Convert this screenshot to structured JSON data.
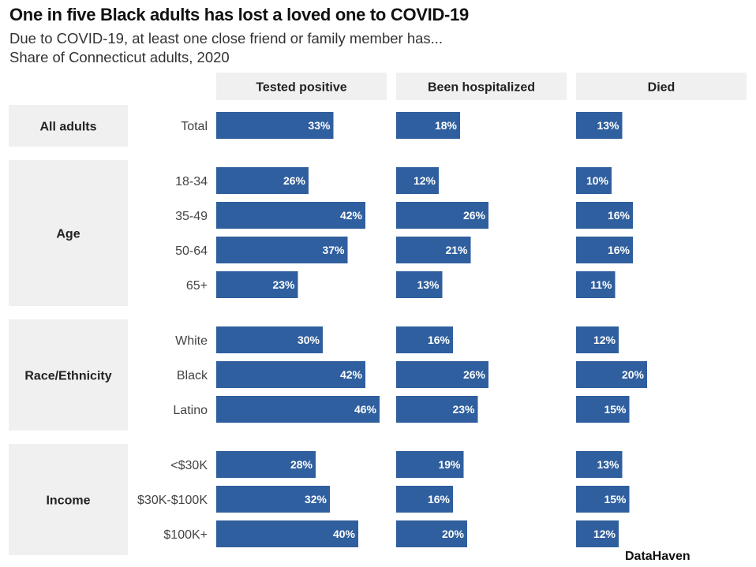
{
  "title": "One in five Black adults has lost a loved one to COVID-19",
  "subtitle": "Due to COVID-19, at least one close friend or family member has...",
  "subtitle2": "Share of Connecticut adults, 2020",
  "source": "DataHaven",
  "colors": {
    "bar": "#2f5f9e",
    "panel": "#f0f0f0",
    "bar_label": "#ffffff"
  },
  "chart_data": {
    "type": "bar",
    "orientation": "horizontal",
    "facets": [
      "Tested positive",
      "Been hospitalized",
      "Died"
    ],
    "groups": [
      {
        "name": "All adults",
        "categories": [
          "Total"
        ]
      },
      {
        "name": "Age",
        "categories": [
          "18-34",
          "35-49",
          "50-64",
          "65+"
        ]
      },
      {
        "name": "Race/Ethnicity",
        "categories": [
          "White",
          "Black",
          "Latino"
        ]
      },
      {
        "name": "Income",
        "categories": [
          "<$30K",
          "$30K-$100K",
          "$100K+"
        ]
      }
    ],
    "series": [
      {
        "values": [
          33,
          26,
          42,
          37,
          23,
          30,
          42,
          46,
          28,
          32,
          40
        ],
        "labels": [
          "33%",
          "26%",
          "42%",
          "37%",
          "23%",
          "30%",
          "42%",
          "46%",
          "28%",
          "32%",
          "40%"
        ]
      },
      {
        "values": [
          18,
          12,
          26,
          21,
          13,
          16,
          26,
          23,
          19,
          16,
          20
        ],
        "labels": [
          "18%",
          "12%",
          "26%",
          "21%",
          "13%",
          "16%",
          "26%",
          "23%",
          "19%",
          "16%",
          "20%"
        ]
      },
      {
        "values": [
          13,
          10,
          16,
          16,
          11,
          12,
          20,
          15,
          13,
          15,
          12
        ],
        "labels": [
          "13%",
          "10%",
          "16%",
          "16%",
          "11%",
          "12%",
          "20%",
          "15%",
          "13%",
          "15%",
          "12%"
        ]
      }
    ],
    "xlim": [
      0,
      48
    ]
  }
}
